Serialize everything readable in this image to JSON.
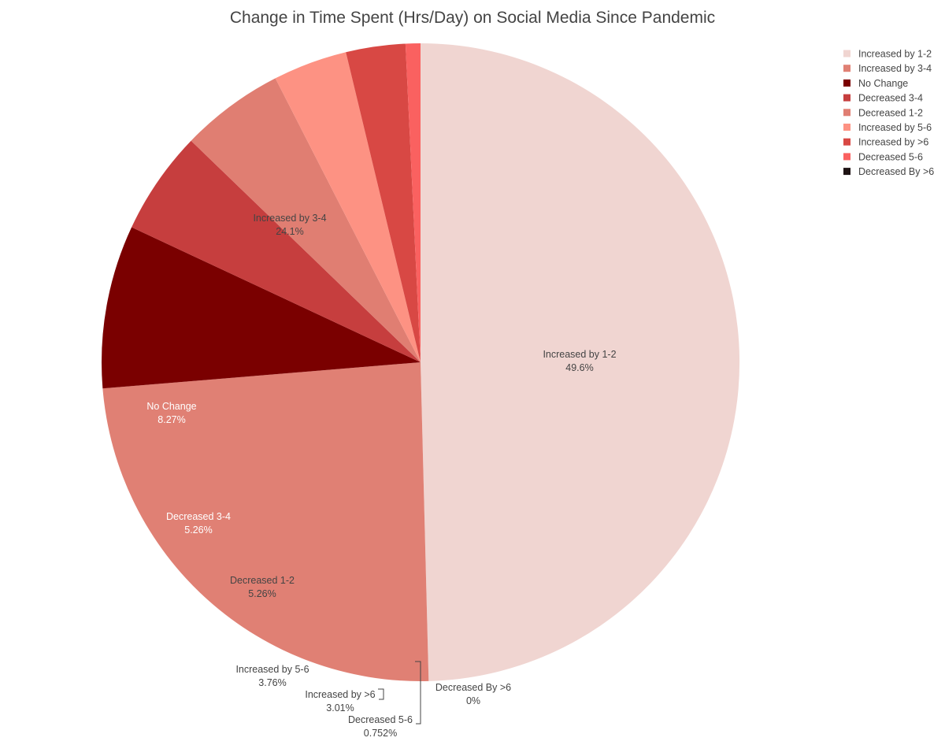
{
  "chart_data": {
    "type": "pie",
    "title": "Change in Time Spent (Hrs/Day) on Social Media Since Pandemic",
    "direction": "clockwise",
    "start": "top",
    "label_format": "name and percent",
    "legend_position": "top-right",
    "categories": [
      "Increased by 1-2",
      "Increased by 3-4",
      "No Change",
      "Decreased 3-4",
      "Decreased 1-2",
      "Increased by 5-6",
      "Increased by >6",
      "Decreased 5-6",
      "Decreased By >6"
    ],
    "values": [
      49.6,
      24.1,
      8.27,
      5.26,
      5.26,
      3.76,
      3.01,
      0.752,
      0
    ],
    "labels": [
      "49.6%",
      "24.1%",
      "8.27%",
      "5.26%",
      "5.26%",
      "3.76%",
      "3.01%",
      "0.752%",
      "0%"
    ],
    "colors": [
      "#f0d5d1",
      "#e08074",
      "#7a0000",
      "#c63e3e",
      "#e07e72",
      "#fd9283",
      "#d84844",
      "#fa6160",
      "#1e1314"
    ],
    "label_colors": [
      "#444444",
      "#444444",
      "#ffffff",
      "#ffffff",
      "#444444",
      "#444444",
      "#444444",
      "#444444",
      "#444444"
    ]
  }
}
